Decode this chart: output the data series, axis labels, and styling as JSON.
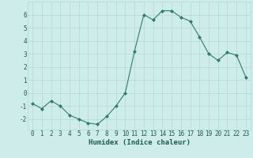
{
  "x": [
    0,
    1,
    2,
    3,
    4,
    5,
    6,
    7,
    8,
    9,
    10,
    11,
    12,
    13,
    14,
    15,
    16,
    17,
    18,
    19,
    20,
    21,
    22,
    23
  ],
  "y": [
    -0.8,
    -1.2,
    -0.6,
    -1.0,
    -1.7,
    -2.0,
    -2.3,
    -2.4,
    -1.8,
    -1.0,
    0.0,
    3.2,
    6.0,
    5.6,
    6.3,
    6.3,
    5.8,
    5.5,
    4.3,
    3.0,
    2.5,
    3.1,
    2.9,
    1.2
  ],
  "xlabel": "Humidex (Indice chaleur)",
  "xlim": [
    -0.5,
    23.5
  ],
  "ylim": [
    -2.8,
    7.0
  ],
  "yticks": [
    -2,
    -1,
    0,
    1,
    2,
    3,
    4,
    5,
    6
  ],
  "xtick_labels": [
    "0",
    "1",
    "2",
    "3",
    "4",
    "5",
    "6",
    "7",
    "8",
    "9",
    "10",
    "11",
    "12",
    "13",
    "14",
    "15",
    "16",
    "17",
    "18",
    "19",
    "20",
    "21",
    "22",
    "23"
  ],
  "line_color": "#2d7d6e",
  "marker": "D",
  "marker_size": 2.0,
  "bg_color": "#ceecea",
  "grid_color": "#b5d9d5",
  "xlabel_color": "#1a5c52",
  "tick_color": "#1a5c52",
  "label_fontsize": 5.5,
  "xlabel_fontsize": 6.5
}
